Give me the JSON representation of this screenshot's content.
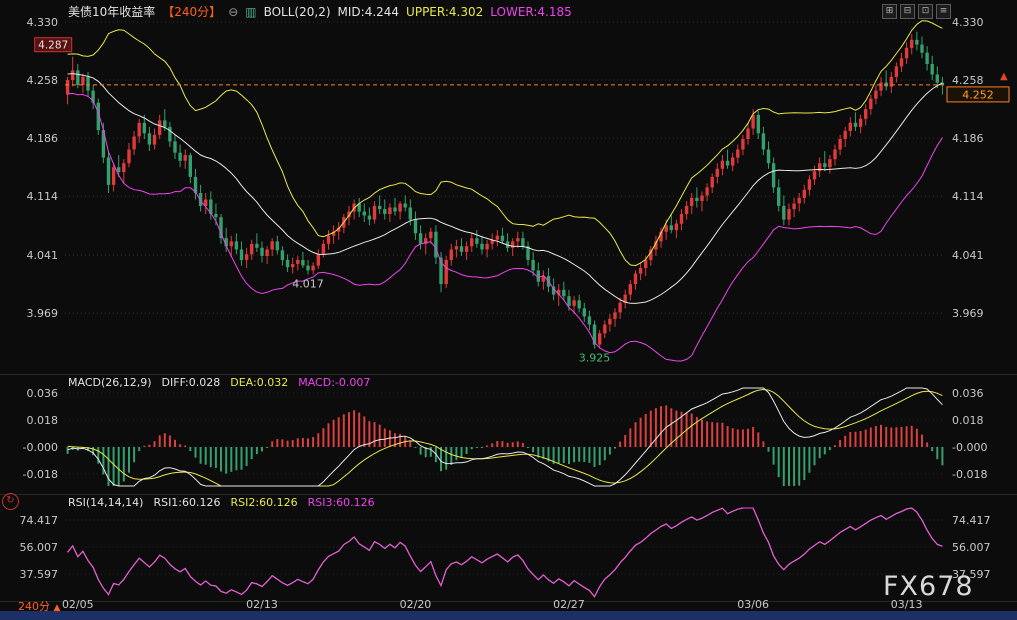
{
  "header": {
    "title": "美债10年收益率",
    "period_tag": "【240分】",
    "icons": {
      "minus_circle": "⊖",
      "candle": "▥"
    },
    "boll": "BOLL(20,2)",
    "mid": "MID:4.244",
    "upper": "UPPER:4.302",
    "lower": "LOWER:4.185",
    "window_icons": [
      {
        "name": "grid-icon",
        "glyph": "⊞"
      },
      {
        "name": "layout-icon",
        "glyph": "⊟"
      },
      {
        "name": "chart-window-icon",
        "glyph": "⊡"
      },
      {
        "name": "list-icon",
        "glyph": "≡"
      }
    ]
  },
  "macd_header": {
    "name": "MACD(26,12,9)",
    "diff": "DIFF:0.028",
    "dea": "DEA:0.032",
    "macd": "MACD:-0.007"
  },
  "rsi_header": {
    "name": "RSI(14,14,14)",
    "rsi1": "RSI1:60.126",
    "rsi2": "RSI2:60.126",
    "rsi3": "RSI3:60.126"
  },
  "watermark": "FX678",
  "bottom": {
    "period": "240分",
    "arrow": "▲"
  },
  "right_arrow": "▲",
  "left_icon": "↻",
  "colors": {
    "up": "#e03a3a",
    "down": "#35a06e",
    "boll_upper": "#e8e84a",
    "boll_mid": "#e8e8e8",
    "boll_lower": "#ee44ee",
    "price_line": "#ff7f27",
    "price_label": "#ffa226",
    "macd_diff": "#e8e8e8",
    "macd_dea": "#e8e84a",
    "hist_pos": "#d94040",
    "hist_neg": "#35a06e",
    "rsi1": "#e8e8e8",
    "rsi2": "#e8e84a",
    "rsi3": "#ee44ee",
    "axis_text": "#c8c8c8",
    "annotation_low": "#3fbf6f"
  },
  "chart_data": [
    {
      "type": "candlestick",
      "title": "美债10年收益率",
      "period": "240分",
      "indicator": "BOLL(20,2)",
      "boll_values": {
        "mid": 4.244,
        "upper": 4.302,
        "lower": 4.185
      },
      "current_price": 4.252,
      "ylim": [
        3.901,
        4.335
      ],
      "y_ticks": [
        {
          "label": "4.330",
          "value": 4.33
        },
        {
          "label": "4.258",
          "value": 4.258
        },
        {
          "label": "4.186",
          "value": 4.186
        },
        {
          "label": "4.114",
          "value": 4.114
        },
        {
          "label": "4.041",
          "value": 4.041
        },
        {
          "label": "3.969",
          "value": 3.969
        }
      ],
      "x_ticks": [
        {
          "label": "02/05",
          "bar": 2
        },
        {
          "label": "02/13",
          "bar": 38
        },
        {
          "label": "02/20",
          "bar": 68
        },
        {
          "label": "02/27",
          "bar": 98
        },
        {
          "label": "03/06",
          "bar": 134
        },
        {
          "label": "03/13",
          "bar": 164
        }
      ],
      "annotations": [
        {
          "text": "4.287",
          "bar": 1,
          "price": 4.287,
          "type": "box"
        },
        {
          "text": "4.017",
          "bar": 47,
          "price": 4.017,
          "type": "plain"
        },
        {
          "text": "3.925",
          "bar": 103,
          "price": 3.925,
          "type": "low"
        }
      ],
      "format": "o,h,l,c",
      "indicator_warmup_closes": [
        4.252,
        4.26,
        4.27,
        4.282,
        4.275,
        4.268,
        4.28,
        4.29,
        4.285,
        4.272,
        4.265,
        4.258,
        4.27,
        4.262,
        4.255,
        4.248,
        4.256,
        4.262,
        4.25,
        4.244
      ],
      "candles": [
        [
          4.24,
          4.262,
          4.228,
          4.258
        ],
        [
          4.258,
          4.287,
          4.25,
          4.27
        ],
        [
          4.27,
          4.278,
          4.248,
          4.252
        ],
        [
          4.252,
          4.266,
          4.242,
          4.262
        ],
        [
          4.262,
          4.268,
          4.238,
          4.245
        ],
        [
          4.245,
          4.252,
          4.222,
          4.23
        ],
        [
          4.23,
          4.235,
          4.19,
          4.196
        ],
        [
          4.196,
          4.205,
          4.155,
          4.162
        ],
        [
          4.162,
          4.17,
          4.118,
          4.128
        ],
        [
          4.128,
          4.155,
          4.12,
          4.15
        ],
        [
          4.15,
          4.165,
          4.138,
          4.144
        ],
        [
          4.144,
          4.16,
          4.13,
          4.155
        ],
        [
          4.155,
          4.18,
          4.15,
          4.172
        ],
        [
          4.172,
          4.195,
          4.165,
          4.188
        ],
        [
          4.188,
          4.21,
          4.18,
          4.205
        ],
        [
          4.205,
          4.215,
          4.185,
          4.192
        ],
        [
          4.192,
          4.2,
          4.17,
          4.178
        ],
        [
          4.178,
          4.198,
          4.172,
          4.19
        ],
        [
          4.19,
          4.215,
          4.185,
          4.208
        ],
        [
          4.208,
          4.222,
          4.195,
          4.2
        ],
        [
          4.2,
          4.206,
          4.175,
          4.182
        ],
        [
          4.182,
          4.19,
          4.16,
          4.168
        ],
        [
          4.168,
          4.178,
          4.15,
          4.158
        ],
        [
          4.158,
          4.172,
          4.148,
          4.165
        ],
        [
          4.165,
          4.168,
          4.13,
          4.138
        ],
        [
          4.138,
          4.148,
          4.11,
          4.118
        ],
        [
          4.118,
          4.128,
          4.095,
          4.102
        ],
        [
          4.102,
          4.118,
          4.092,
          4.11
        ],
        [
          4.11,
          4.12,
          4.085,
          4.092
        ],
        [
          4.092,
          4.105,
          4.078,
          4.088
        ],
        [
          4.088,
          4.092,
          4.055,
          4.062
        ],
        [
          4.062,
          4.075,
          4.045,
          4.052
        ],
        [
          4.052,
          4.065,
          4.038,
          4.058
        ],
        [
          4.058,
          4.068,
          4.042,
          4.048
        ],
        [
          4.048,
          4.058,
          4.028,
          4.035
        ],
        [
          4.035,
          4.05,
          4.025,
          4.042
        ],
        [
          4.042,
          4.06,
          4.035,
          4.055
        ],
        [
          4.055,
          4.068,
          4.045,
          4.05
        ],
        [
          4.05,
          4.058,
          4.032,
          4.04
        ],
        [
          4.04,
          4.052,
          4.03,
          4.048
        ],
        [
          4.048,
          4.062,
          4.04,
          4.058
        ],
        [
          4.058,
          4.065,
          4.042,
          4.047
        ],
        [
          4.047,
          4.052,
          4.028,
          4.035
        ],
        [
          4.035,
          4.042,
          4.02,
          4.026
        ],
        [
          4.026,
          4.038,
          4.018,
          4.03
        ],
        [
          4.03,
          4.04,
          4.022,
          4.035
        ],
        [
          4.035,
          4.045,
          4.025,
          4.028
        ],
        [
          4.028,
          4.035,
          4.017,
          4.022
        ],
        [
          4.022,
          4.032,
          4.017,
          4.028
        ],
        [
          4.028,
          4.048,
          4.024,
          4.042
        ],
        [
          4.042,
          4.06,
          4.038,
          4.055
        ],
        [
          4.055,
          4.072,
          4.048,
          4.065
        ],
        [
          4.065,
          4.078,
          4.055,
          4.07
        ],
        [
          4.07,
          4.082,
          4.06,
          4.075
        ],
        [
          4.075,
          4.092,
          4.068,
          4.088
        ],
        [
          4.088,
          4.102,
          4.078,
          4.095
        ],
        [
          4.095,
          4.11,
          4.085,
          4.105
        ],
        [
          4.105,
          4.112,
          4.088,
          4.095
        ],
        [
          4.095,
          4.105,
          4.082,
          4.09
        ],
        [
          4.09,
          4.1,
          4.078,
          4.085
        ],
        [
          4.085,
          4.108,
          4.08,
          4.102
        ],
        [
          4.102,
          4.115,
          4.092,
          4.098
        ],
        [
          4.098,
          4.11,
          4.085,
          4.092
        ],
        [
          4.092,
          4.105,
          4.082,
          4.1
        ],
        [
          4.1,
          4.112,
          4.09,
          4.095
        ],
        [
          4.095,
          4.108,
          4.085,
          4.105
        ],
        [
          4.105,
          4.115,
          4.095,
          4.1
        ],
        [
          4.1,
          4.11,
          4.078,
          4.085
        ],
        [
          4.085,
          4.095,
          4.06,
          4.068
        ],
        [
          4.068,
          4.078,
          4.048,
          4.055
        ],
        [
          4.055,
          4.068,
          4.042,
          4.062
        ],
        [
          4.062,
          4.075,
          4.055,
          4.07
        ],
        [
          4.07,
          4.078,
          4.03,
          4.038
        ],
        [
          4.038,
          4.045,
          3.995,
          4.005
        ],
        [
          4.005,
          4.04,
          4.0,
          4.035
        ],
        [
          4.035,
          4.055,
          4.028,
          4.048
        ],
        [
          4.048,
          4.06,
          4.038,
          4.052
        ],
        [
          4.052,
          4.062,
          4.04,
          4.045
        ],
        [
          4.045,
          4.058,
          4.035,
          4.052
        ],
        [
          4.052,
          4.068,
          4.045,
          4.062
        ],
        [
          4.062,
          4.072,
          4.05,
          4.055
        ],
        [
          4.055,
          4.065,
          4.042,
          4.048
        ],
        [
          4.048,
          4.06,
          4.038,
          4.055
        ],
        [
          4.055,
          4.068,
          4.048,
          4.06
        ],
        [
          4.06,
          4.072,
          4.052,
          4.065
        ],
        [
          4.065,
          4.075,
          4.055,
          4.058
        ],
        [
          4.058,
          4.068,
          4.045,
          4.05
        ],
        [
          4.05,
          4.062,
          4.04,
          4.058
        ],
        [
          4.058,
          4.07,
          4.05,
          4.062
        ],
        [
          4.062,
          4.07,
          4.048,
          4.052
        ],
        [
          4.052,
          4.058,
          4.028,
          4.035
        ],
        [
          4.035,
          4.045,
          4.015,
          4.022
        ],
        [
          4.022,
          4.032,
          4.002,
          4.008
        ],
        [
          4.008,
          4.022,
          3.998,
          4.015
        ],
        [
          4.015,
          4.025,
          3.995,
          4.002
        ],
        [
          4.002,
          4.012,
          3.985,
          3.992
        ],
        [
          3.992,
          4.005,
          3.978,
          3.998
        ],
        [
          3.998,
          4.008,
          3.985,
          3.99
        ],
        [
          3.99,
          3.998,
          3.972,
          3.978
        ],
        [
          3.978,
          3.99,
          3.968,
          3.985
        ],
        [
          3.985,
          3.992,
          3.97,
          3.975
        ],
        [
          3.975,
          3.982,
          3.958,
          3.965
        ],
        [
          3.965,
          3.972,
          3.948,
          3.955
        ],
        [
          3.955,
          3.96,
          3.925,
          3.93
        ],
        [
          3.93,
          3.948,
          3.926,
          3.944
        ],
        [
          3.944,
          3.96,
          3.938,
          3.955
        ],
        [
          3.955,
          3.968,
          3.946,
          3.962
        ],
        [
          3.962,
          3.975,
          3.952,
          3.97
        ],
        [
          3.97,
          3.988,
          3.962,
          3.982
        ],
        [
          3.982,
          3.998,
          3.975,
          3.992
        ],
        [
          3.992,
          4.01,
          3.985,
          4.005
        ],
        [
          4.005,
          4.022,
          3.998,
          4.018
        ],
        [
          4.018,
          4.032,
          4.01,
          4.025
        ],
        [
          4.025,
          4.04,
          4.015,
          4.035
        ],
        [
          4.035,
          4.052,
          4.028,
          4.048
        ],
        [
          4.048,
          4.065,
          4.04,
          4.058
        ],
        [
          4.058,
          4.075,
          4.05,
          4.07
        ],
        [
          4.07,
          4.085,
          4.06,
          4.078
        ],
        [
          4.078,
          4.092,
          4.068,
          4.072
        ],
        [
          4.072,
          4.085,
          4.062,
          4.08
        ],
        [
          4.08,
          4.098,
          4.072,
          4.092
        ],
        [
          4.092,
          4.108,
          4.085,
          4.102
        ],
        [
          4.102,
          4.118,
          4.092,
          4.112
        ],
        [
          4.112,
          4.125,
          4.1,
          4.108
        ],
        [
          4.108,
          4.12,
          4.095,
          4.115
        ],
        [
          4.115,
          4.13,
          4.108,
          4.125
        ],
        [
          4.125,
          4.142,
          4.118,
          4.138
        ],
        [
          4.138,
          4.155,
          4.13,
          4.148
        ],
        [
          4.148,
          4.165,
          4.14,
          4.158
        ],
        [
          4.158,
          4.172,
          4.148,
          4.152
        ],
        [
          4.152,
          4.168,
          4.145,
          4.162
        ],
        [
          4.162,
          4.178,
          4.155,
          4.172
        ],
        [
          4.172,
          4.19,
          4.165,
          4.185
        ],
        [
          4.185,
          4.205,
          4.178,
          4.198
        ],
        [
          4.198,
          4.222,
          4.19,
          4.215
        ],
        [
          4.215,
          4.22,
          4.185,
          4.192
        ],
        [
          4.192,
          4.2,
          4.165,
          4.172
        ],
        [
          4.172,
          4.182,
          4.148,
          4.155
        ],
        [
          4.155,
          4.162,
          4.118,
          4.125
        ],
        [
          4.125,
          4.135,
          4.095,
          4.102
        ],
        [
          4.102,
          4.115,
          4.078,
          4.085
        ],
        [
          4.085,
          4.105,
          4.078,
          4.098
        ],
        [
          4.098,
          4.112,
          4.088,
          4.105
        ],
        [
          4.105,
          4.118,
          4.095,
          4.112
        ],
        [
          4.112,
          4.128,
          4.105,
          4.122
        ],
        [
          4.122,
          4.14,
          4.115,
          4.135
        ],
        [
          4.135,
          4.152,
          4.128,
          4.145
        ],
        [
          4.145,
          4.162,
          4.138,
          4.155
        ],
        [
          4.155,
          4.17,
          4.145,
          4.15
        ],
        [
          4.15,
          4.165,
          4.142,
          4.16
        ],
        [
          4.16,
          4.178,
          4.152,
          4.172
        ],
        [
          4.172,
          4.19,
          4.165,
          4.185
        ],
        [
          4.185,
          4.2,
          4.175,
          4.195
        ],
        [
          4.195,
          4.212,
          4.188,
          4.205
        ],
        [
          4.205,
          4.218,
          4.195,
          4.2
        ],
        [
          4.2,
          4.215,
          4.192,
          4.21
        ],
        [
          4.21,
          4.228,
          4.202,
          4.222
        ],
        [
          4.222,
          4.24,
          4.215,
          4.235
        ],
        [
          4.235,
          4.252,
          4.228,
          4.245
        ],
        [
          4.245,
          4.262,
          4.238,
          4.255
        ],
        [
          4.255,
          4.27,
          4.245,
          4.25
        ],
        [
          4.25,
          4.268,
          4.242,
          4.262
        ],
        [
          4.262,
          4.28,
          4.255,
          4.275
        ],
        [
          4.275,
          4.292,
          4.268,
          4.285
        ],
        [
          4.285,
          4.305,
          4.278,
          4.298
        ],
        [
          4.298,
          4.315,
          4.29,
          4.308
        ],
        [
          4.308,
          4.318,
          4.295,
          4.302
        ],
        [
          4.302,
          4.312,
          4.285,
          4.292
        ],
        [
          4.292,
          4.3,
          4.27,
          4.278
        ],
        [
          4.278,
          4.288,
          4.258,
          4.265
        ],
        [
          4.265,
          4.275,
          4.248,
          4.255
        ],
        [
          4.255,
          4.262,
          4.24,
          4.252
        ]
      ]
    },
    {
      "type": "macd",
      "params": "MACD(26,12,9)",
      "diff": 0.028,
      "dea": 0.032,
      "macd": -0.007,
      "derived_from_candles": true,
      "ylim": [
        -0.026,
        0.0393
      ],
      "y_ticks": [
        {
          "label": "0.036",
          "value": 0.036
        },
        {
          "label": "0.018",
          "value": 0.018
        },
        {
          "label": "-0.000",
          "value": 0
        },
        {
          "label": "-0.018",
          "value": -0.018
        }
      ]
    },
    {
      "type": "rsi",
      "params": "RSI(14,14,14)",
      "rsi1": 60.126,
      "rsi2": 60.126,
      "rsi3": 60.126,
      "derived_from_candles": true,
      "ylim": [
        21.2,
        82.6
      ],
      "y_ticks": [
        {
          "label": "74.417",
          "value": 74.417
        },
        {
          "label": "56.007",
          "value": 56.007
        },
        {
          "label": "37.597",
          "value": 37.597
        }
      ]
    }
  ]
}
